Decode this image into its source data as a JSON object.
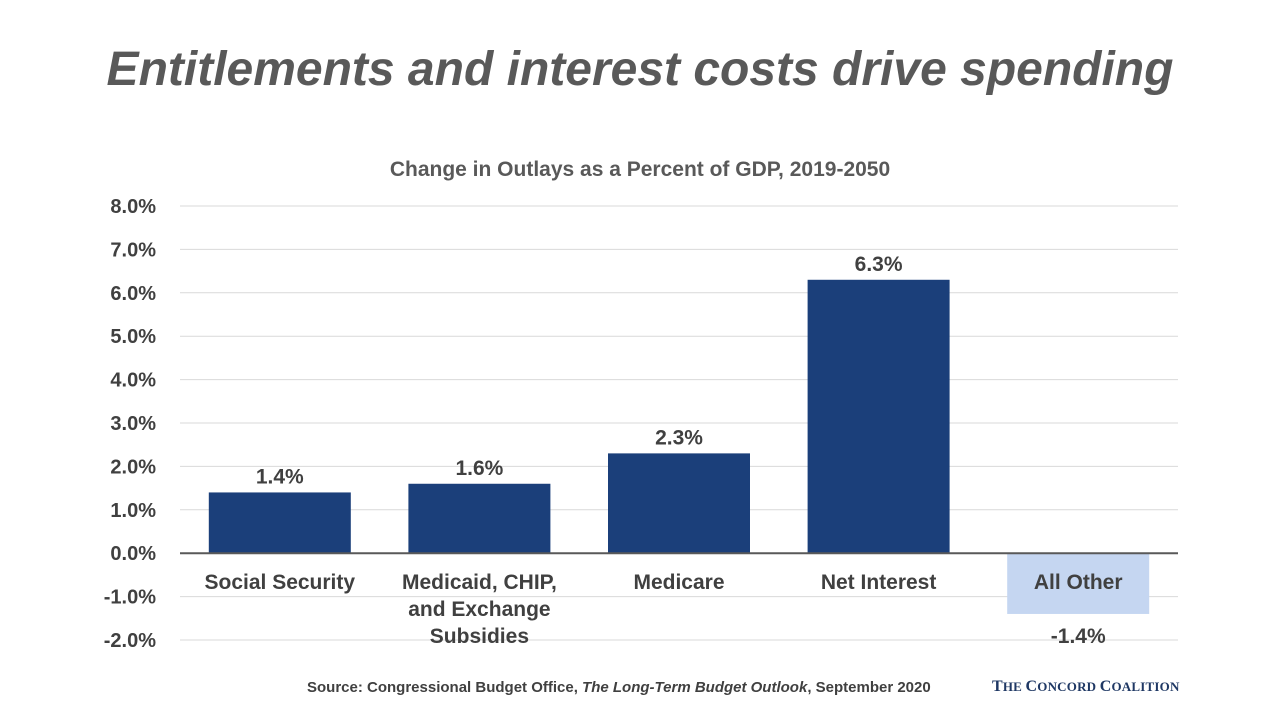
{
  "headline": "Entitlements and interest costs drive spending",
  "chart_data": {
    "type": "bar",
    "title": "Change in Outlays as a Percent of GDP, 2019-2050",
    "xlabel": "",
    "ylabel": "",
    "categories": [
      [
        "Social Security"
      ],
      [
        "Medicaid, CHIP,",
        "and Exchange",
        "Subsidies"
      ],
      [
        "Medicare"
      ],
      [
        "Net Interest"
      ],
      [
        "All Other"
      ]
    ],
    "values": [
      1.4,
      1.6,
      2.3,
      6.3,
      -1.4
    ],
    "data_labels": [
      "1.4%",
      "1.6%",
      "2.3%",
      "6.3%",
      "-1.4%"
    ],
    "ylim": [
      -2.0,
      8.0
    ],
    "yticks": [
      8.0,
      7.0,
      6.0,
      5.0,
      4.0,
      3.0,
      2.0,
      1.0,
      0.0,
      -1.0,
      -2.0
    ],
    "ytick_labels": [
      "8.0%",
      "7.0%",
      "6.0%",
      "5.0%",
      "4.0%",
      "3.0%",
      "2.0%",
      "1.0%",
      "0.0%",
      "-1.0%",
      "-2.0%"
    ],
    "grid": true,
    "legend": "none",
    "colors": {
      "positive_bar": "#1B3F7A",
      "negative_bar": "#C5D6F1",
      "grid": "#D9D9D9",
      "axis": "#595959",
      "text": "#404040"
    }
  },
  "source": {
    "prefix": "Source: Congressional Budget Office, ",
    "title": "The Long-Term Budget Outlook",
    "suffix": ", September 2020"
  },
  "logo": {
    "the_initial": "T",
    "the_rest": "HE ",
    "concord_initial": "C",
    "concord_rest": "ONCORD ",
    "coalition_initial": "C",
    "coalition_rest": "OALITION"
  }
}
